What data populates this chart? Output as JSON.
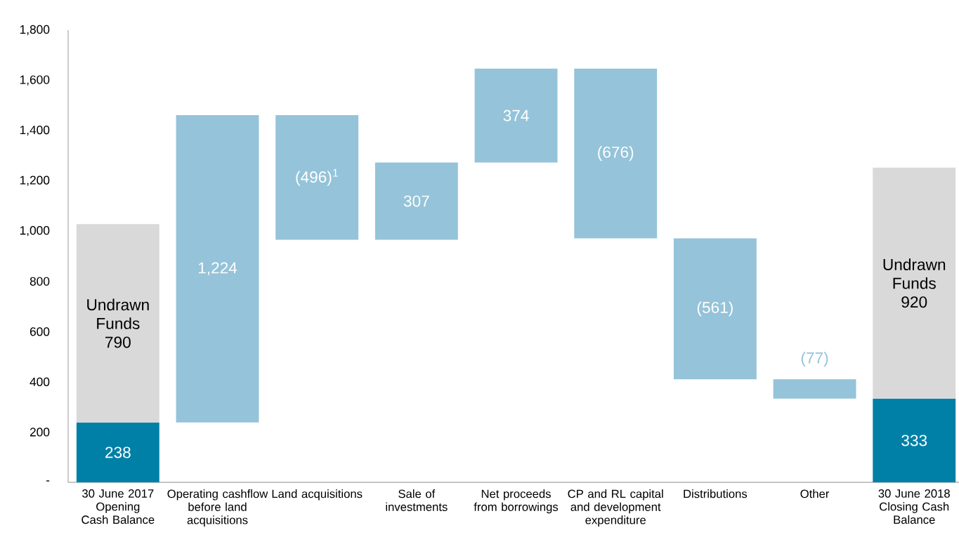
{
  "chart_data": {
    "type": "bar",
    "categories": [
      "30 June 2017 Opening Cash Balance",
      "Operating cashflow before land acquisitions",
      "Land acquisitions",
      "Sale of investments",
      "Net proceeds from borrowings",
      "CP and RL capital and development expenditure",
      "Distributions",
      "Other",
      "30 June 2018 Closing Cash Balance"
    ],
    "ylim": [
      0,
      1800
    ],
    "yticks": [
      {
        "value": 0,
        "label": "-"
      },
      200,
      400,
      600,
      800,
      {
        "value": 1000,
        "label": "1,000"
      },
      {
        "value": 1200,
        "label": "1,200"
      },
      {
        "value": 1400,
        "label": "1,400"
      },
      {
        "value": 1600,
        "label": "1,600"
      },
      {
        "value": 1800,
        "label": "1,800"
      }
    ],
    "series": [
      {
        "color": "#0080a6",
        "values": [
          238,
          null,
          null,
          null,
          null,
          null,
          null,
          null,
          333
        ],
        "base": [
          0,
          null,
          null,
          null,
          null,
          null,
          null,
          null,
          0
        ],
        "value_labels": [
          "238",
          null,
          null,
          null,
          null,
          null,
          null,
          null,
          "333"
        ]
      },
      {
        "color": "#95c3d9",
        "values": [
          null,
          1224,
          -496,
          307,
          374,
          -676,
          -561,
          -77,
          null
        ],
        "base": [
          null,
          238,
          1462,
          966,
          1273,
          1647,
          971,
          410,
          null
        ],
        "value_labels": [
          null,
          "1,224",
          "(496)$^{1}$",
          "307",
          "374",
          "(676)",
          "(561)",
          "(77)",
          null
        ]
      },
      {
        "color": "#d9d9d9",
        "values": [
          790,
          null,
          null,
          null,
          null,
          null,
          null,
          null,
          920
        ],
        "base": [
          238,
          null,
          null,
          null,
          null,
          null,
          null,
          null,
          333
        ],
        "value_labels": [
          "Undrawn Funds 790",
          null,
          null,
          null,
          null,
          null,
          null,
          null,
          "Undrawn Funds 920"
        ]
      }
    ]
  }
}
